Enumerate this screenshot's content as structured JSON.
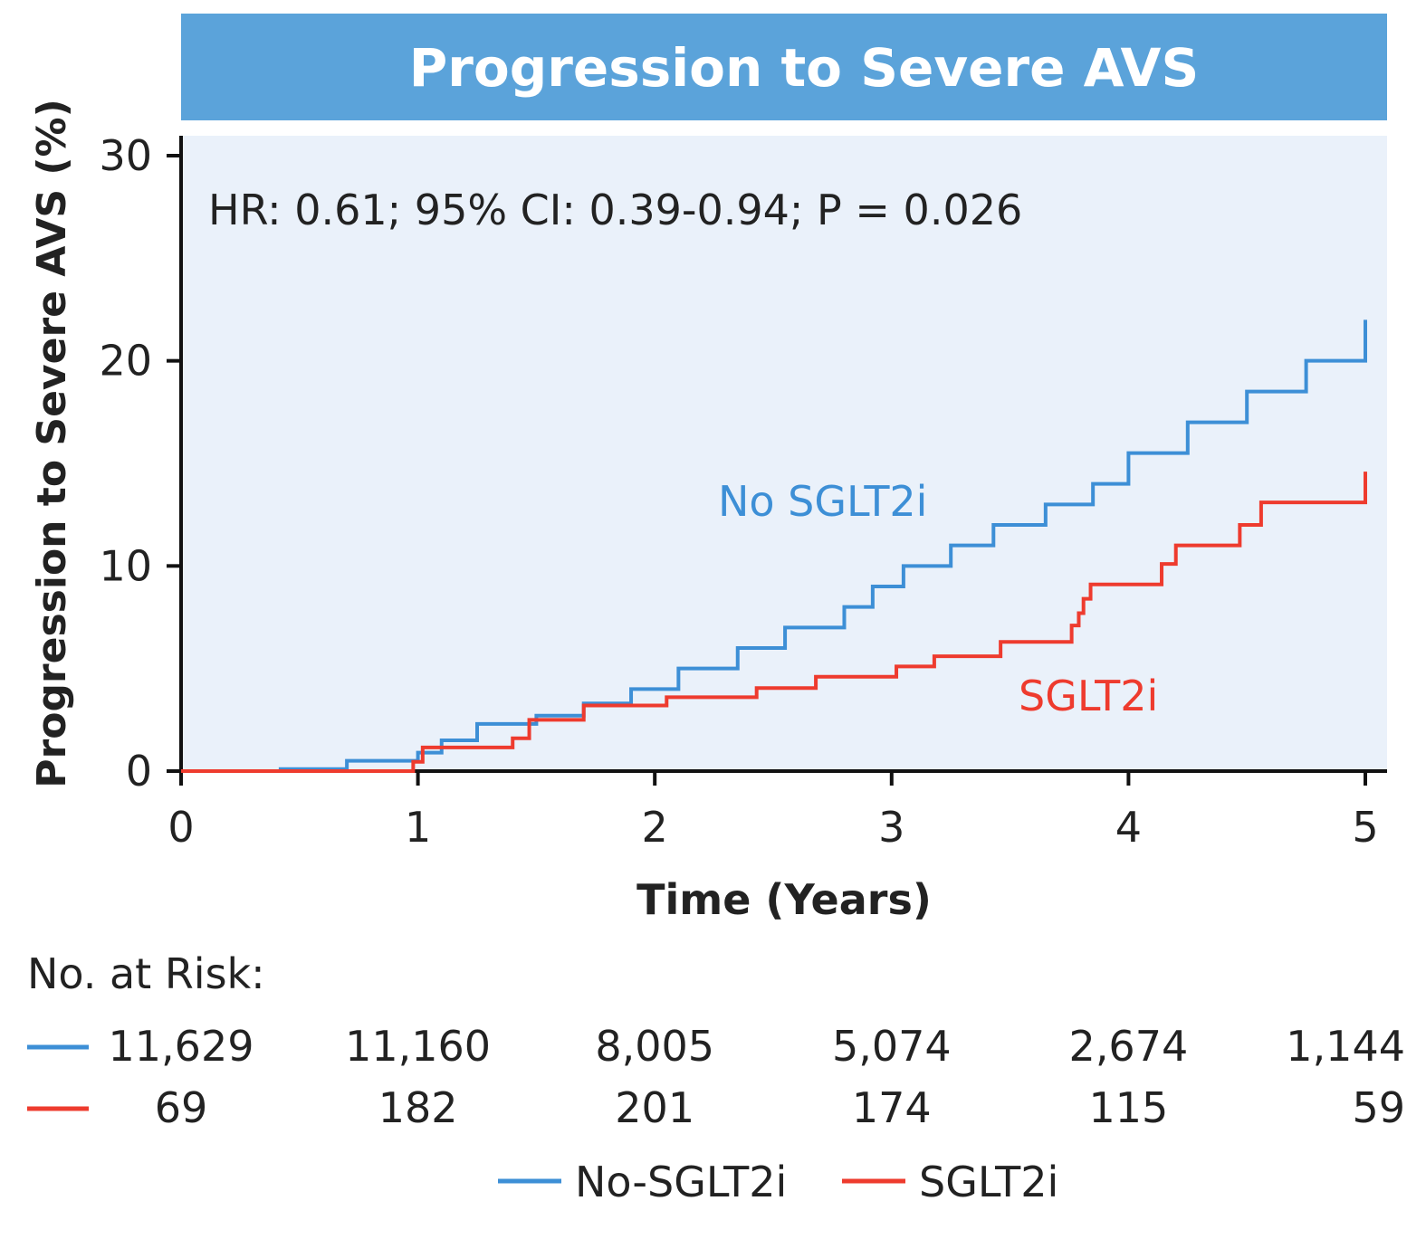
{
  "chart_data": {
    "type": "line",
    "title": "Progression to Severe AVS",
    "xlabel": "Time (Years)",
    "ylabel": "Progression to Severe AVS (%)",
    "xlim": [
      0,
      5
    ],
    "ylim": [
      0,
      30
    ],
    "x_ticks": [
      "0",
      "1",
      "2",
      "3",
      "4",
      "5"
    ],
    "y_ticks": [
      "0",
      "10",
      "20",
      "30"
    ],
    "grid": false,
    "annotation": "HR: 0.61; 95% CI: 0.39-0.94; P = 0.026",
    "series": [
      {
        "name": "No SGLT2i",
        "legend_label": "No-SGLT2i",
        "color": "#3D8FD6",
        "step": true,
        "points": [
          [
            0,
            0
          ],
          [
            0.42,
            0.1
          ],
          [
            0.7,
            0.5
          ],
          [
            1.0,
            0.9
          ],
          [
            1.1,
            1.5
          ],
          [
            1.25,
            2.3
          ],
          [
            1.5,
            2.7
          ],
          [
            1.7,
            3.3
          ],
          [
            1.9,
            4.0
          ],
          [
            2.1,
            5.0
          ],
          [
            2.35,
            6.0
          ],
          [
            2.55,
            7.0
          ],
          [
            2.8,
            8.0
          ],
          [
            2.92,
            9.0
          ],
          [
            3.05,
            10.0
          ],
          [
            3.25,
            11.0
          ],
          [
            3.43,
            12.0
          ],
          [
            3.65,
            13.0
          ],
          [
            3.85,
            14.0
          ],
          [
            4.0,
            15.5
          ],
          [
            4.25,
            17.0
          ],
          [
            4.5,
            18.5
          ],
          [
            4.75,
            20.0
          ],
          [
            5.0,
            22.0
          ]
        ]
      },
      {
        "name": "SGLT2i",
        "legend_label": "SGLT2i",
        "color": "#EE3B2E",
        "step": true,
        "points": [
          [
            0,
            0
          ],
          [
            0.98,
            0.45
          ],
          [
            1.02,
            1.15
          ],
          [
            1.4,
            1.6
          ],
          [
            1.47,
            2.5
          ],
          [
            1.7,
            3.2
          ],
          [
            2.05,
            3.6
          ],
          [
            2.43,
            4.05
          ],
          [
            2.68,
            4.6
          ],
          [
            3.02,
            5.1
          ],
          [
            3.18,
            5.6
          ],
          [
            3.46,
            6.3
          ],
          [
            3.76,
            7.1
          ],
          [
            3.79,
            7.7
          ],
          [
            3.81,
            8.4
          ],
          [
            3.84,
            9.1
          ],
          [
            4.14,
            10.1
          ],
          [
            4.2,
            11.0
          ],
          [
            4.47,
            12.0
          ],
          [
            4.56,
            13.1
          ],
          [
            5.0,
            14.6
          ]
        ]
      }
    ],
    "at_risk": {
      "label": "No. at Risk:",
      "rows": [
        {
          "series": "No SGLT2i",
          "values": [
            "11,629",
            "11,160",
            "8,005",
            "5,074",
            "2,674",
            "1,144"
          ]
        },
        {
          "series": "SGLT2i",
          "values": [
            "69",
            "182",
            "201",
            "174",
            "115",
            "59"
          ]
        }
      ]
    },
    "legend_placement": "bottom-center",
    "colors": {
      "title_bar": "#5BA3DA",
      "plot_bg": "#EAF1FA"
    }
  }
}
